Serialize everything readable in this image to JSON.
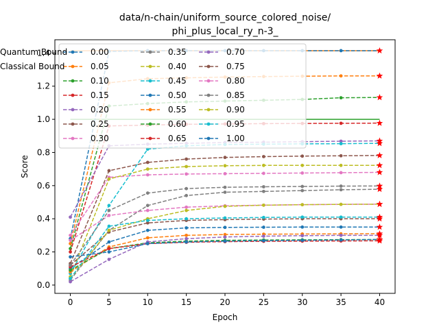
{
  "chart_data": {
    "type": "line",
    "title_lines": [
      "data/n-chain/uniform_source_colored_noise/",
      "phi_plus_local_ry_n-3_"
    ],
    "xlabel": "Epoch",
    "ylabel": "Score",
    "xlim": [
      -2,
      42
    ],
    "ylim": [
      -0.05,
      1.48
    ],
    "x_ticks": [
      0,
      5,
      10,
      15,
      20,
      25,
      30,
      35,
      40
    ],
    "y_ticks": [
      0.0,
      0.2,
      0.4,
      0.6,
      0.8,
      1.0,
      1.2,
      1.4
    ],
    "x_tick_labels": [
      "0",
      "5",
      "10",
      "15",
      "20",
      "25",
      "30",
      "35",
      "40"
    ],
    "y_tick_labels": [
      "0.0",
      "0.2",
      "0.4",
      "0.6",
      "0.8",
      "1.0",
      "1.2",
      "1.4"
    ],
    "x": [
      0,
      5,
      10,
      15,
      20,
      25,
      30,
      35,
      40
    ],
    "legend_position": "top-left",
    "series": [
      {
        "name": "0.00",
        "color": "#1f77b4",
        "values": [
          0.28,
          1.41,
          1.414,
          1.414,
          1.414,
          1.414,
          1.414,
          1.414,
          1.414
        ]
      },
      {
        "name": "0.05",
        "color": "#ff7f0e",
        "values": [
          0.25,
          1.22,
          1.245,
          1.25,
          1.255,
          1.258,
          1.26,
          1.262,
          1.262
        ]
      },
      {
        "name": "0.10",
        "color": "#2ca02c",
        "values": [
          0.22,
          1.08,
          1.095,
          1.105,
          1.11,
          1.115,
          1.12,
          1.13,
          1.132
        ]
      },
      {
        "name": "0.15",
        "color": "#d62728",
        "values": [
          0.2,
          0.96,
          0.965,
          0.97,
          0.972,
          0.974,
          0.975,
          0.976,
          0.977
        ]
      },
      {
        "name": "0.20",
        "color": "#9467bd",
        "values": [
          0.41,
          0.84,
          0.85,
          0.855,
          0.86,
          0.862,
          0.865,
          0.868,
          0.87
        ]
      },
      {
        "name": "0.25",
        "color": "#8c564b",
        "values": [
          0.13,
          0.69,
          0.74,
          0.76,
          0.77,
          0.775,
          0.778,
          0.78,
          0.782
        ]
      },
      {
        "name": "0.30",
        "color": "#e377c2",
        "values": [
          0.3,
          0.65,
          0.665,
          0.67,
          0.672,
          0.674,
          0.676,
          0.678,
          0.68
        ]
      },
      {
        "name": "0.35",
        "color": "#7f7f7f",
        "values": [
          0.03,
          0.33,
          0.48,
          0.54,
          0.56,
          0.565,
          0.57,
          0.575,
          0.578
        ]
      },
      {
        "name": "0.40",
        "color": "#bcbd22",
        "values": [
          0.05,
          0.64,
          0.7,
          0.715,
          0.72,
          0.722,
          0.722,
          0.722,
          0.722
        ]
      },
      {
        "name": "0.45",
        "color": "#17becf",
        "values": [
          0.07,
          0.48,
          0.82,
          0.84,
          0.848,
          0.85,
          0.852,
          0.853,
          0.855
        ]
      },
      {
        "name": "0.50",
        "color": "#1f77b4",
        "values": [
          0.1,
          0.26,
          0.33,
          0.345,
          0.348,
          0.349,
          0.35,
          0.35,
          0.35
        ]
      },
      {
        "name": "0.55",
        "color": "#ff7f0e",
        "values": [
          0.08,
          0.23,
          0.285,
          0.3,
          0.305,
          0.307,
          0.308,
          0.309,
          0.31
        ]
      },
      {
        "name": "0.60",
        "color": "#2ca02c",
        "values": [
          0.09,
          0.22,
          0.255,
          0.265,
          0.27,
          0.272,
          0.273,
          0.274,
          0.275
        ]
      },
      {
        "name": "0.65",
        "color": "#d62728",
        "values": [
          0.11,
          0.22,
          0.25,
          0.258,
          0.262,
          0.264,
          0.265,
          0.266,
          0.267
        ]
      },
      {
        "name": "0.70",
        "color": "#9467bd",
        "values": [
          0.02,
          0.155,
          0.26,
          0.28,
          0.29,
          0.295,
          0.298,
          0.3,
          0.3
        ]
      },
      {
        "name": "0.75",
        "color": "#8c564b",
        "values": [
          0.12,
          0.32,
          0.375,
          0.39,
          0.395,
          0.398,
          0.4,
          0.4,
          0.4
        ]
      },
      {
        "name": "0.80",
        "color": "#e377c2",
        "values": [
          0.27,
          0.42,
          0.45,
          0.47,
          0.478,
          0.482,
          0.485,
          0.487,
          0.488
        ]
      },
      {
        "name": "0.85",
        "color": "#7f7f7f",
        "values": [
          0.12,
          0.45,
          0.555,
          0.582,
          0.59,
          0.593,
          0.595,
          0.597,
          0.598
        ]
      },
      {
        "name": "0.90",
        "color": "#bcbd22",
        "values": [
          0.04,
          0.33,
          0.4,
          0.45,
          0.475,
          0.482,
          0.485,
          0.487,
          0.488
        ]
      },
      {
        "name": "0.95",
        "color": "#17becf",
        "values": [
          0.04,
          0.355,
          0.39,
          0.4,
          0.405,
          0.408,
          0.41,
          0.41,
          0.41
        ]
      },
      {
        "name": "1.00",
        "color": "#1f77b4",
        "values": [
          0.17,
          0.2,
          0.25,
          0.26,
          0.265,
          0.268,
          0.27,
          0.272,
          0.275
        ]
      }
    ],
    "bounds": [
      {
        "name": "Quantum Bound",
        "color": "#ff7f0e",
        "value": 1.414
      },
      {
        "name": "Classical Bound",
        "color": "#2ca02c",
        "value": 1.0
      }
    ]
  }
}
